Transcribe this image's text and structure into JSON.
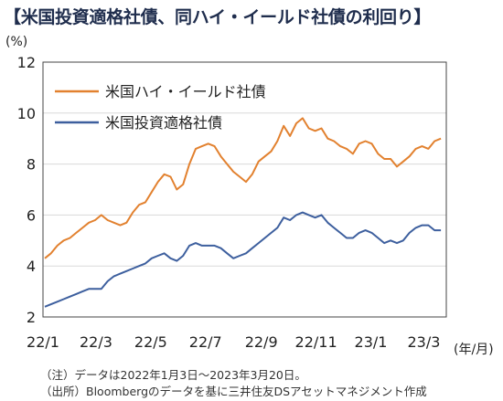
{
  "header": {
    "title": "【米国投資適格社債、同ハイ・イールド社債の利回り】"
  },
  "notes": {
    "note1": "（注）データは2022年1月3日～2023年3月20日。",
    "note2": "（出所）Bloombergのデータを基に三井住友DSアセットマネジメント作成"
  },
  "chart_data": {
    "type": "line",
    "yunit": "(%)",
    "xunit": "(年/月)",
    "ylim": [
      2,
      12
    ],
    "yticks": [
      2,
      4,
      6,
      8,
      10,
      12
    ],
    "xlim": [
      "2022-01-03",
      "2023-03-20"
    ],
    "xticks": [
      {
        "date": "2022-01-01",
        "label": "22/1"
      },
      {
        "date": "2022-03-01",
        "label": "22/3"
      },
      {
        "date": "2022-05-01",
        "label": "22/5"
      },
      {
        "date": "2022-07-01",
        "label": "22/7"
      },
      {
        "date": "2022-09-01",
        "label": "22/9"
      },
      {
        "date": "2022-11-01",
        "label": "22/11"
      },
      {
        "date": "2023-01-01",
        "label": "23/1"
      },
      {
        "date": "2023-03-01",
        "label": "23/3"
      }
    ],
    "grid": true,
    "legend_position": "top-left",
    "series": [
      {
        "name": "米国ハイ・イールド社債",
        "color": "#e2812f",
        "points": [
          [
            "2022-01-03",
            4.3
          ],
          [
            "2022-01-10",
            4.5
          ],
          [
            "2022-01-17",
            4.8
          ],
          [
            "2022-01-24",
            5.0
          ],
          [
            "2022-01-31",
            5.1
          ],
          [
            "2022-02-07",
            5.3
          ],
          [
            "2022-02-14",
            5.5
          ],
          [
            "2022-02-21",
            5.7
          ],
          [
            "2022-02-28",
            5.8
          ],
          [
            "2022-03-07",
            6.0
          ],
          [
            "2022-03-14",
            5.8
          ],
          [
            "2022-03-21",
            5.7
          ],
          [
            "2022-03-28",
            5.6
          ],
          [
            "2022-04-04",
            5.7
          ],
          [
            "2022-04-11",
            6.1
          ],
          [
            "2022-04-18",
            6.4
          ],
          [
            "2022-04-25",
            6.5
          ],
          [
            "2022-05-02",
            6.9
          ],
          [
            "2022-05-09",
            7.3
          ],
          [
            "2022-05-16",
            7.6
          ],
          [
            "2022-05-23",
            7.5
          ],
          [
            "2022-05-30",
            7.0
          ],
          [
            "2022-06-06",
            7.2
          ],
          [
            "2022-06-13",
            8.0
          ],
          [
            "2022-06-20",
            8.6
          ],
          [
            "2022-06-27",
            8.7
          ],
          [
            "2022-07-04",
            8.8
          ],
          [
            "2022-07-11",
            8.7
          ],
          [
            "2022-07-18",
            8.3
          ],
          [
            "2022-07-25",
            8.0
          ],
          [
            "2022-08-01",
            7.7
          ],
          [
            "2022-08-08",
            7.5
          ],
          [
            "2022-08-15",
            7.3
          ],
          [
            "2022-08-22",
            7.6
          ],
          [
            "2022-08-29",
            8.1
          ],
          [
            "2022-09-05",
            8.3
          ],
          [
            "2022-09-12",
            8.5
          ],
          [
            "2022-09-19",
            8.9
          ],
          [
            "2022-09-26",
            9.5
          ],
          [
            "2022-10-03",
            9.1
          ],
          [
            "2022-10-10",
            9.6
          ],
          [
            "2022-10-17",
            9.8
          ],
          [
            "2022-10-24",
            9.4
          ],
          [
            "2022-10-31",
            9.3
          ],
          [
            "2022-11-07",
            9.4
          ],
          [
            "2022-11-14",
            9.0
          ],
          [
            "2022-11-21",
            8.9
          ],
          [
            "2022-11-28",
            8.7
          ],
          [
            "2022-12-05",
            8.6
          ],
          [
            "2022-12-12",
            8.4
          ],
          [
            "2022-12-19",
            8.8
          ],
          [
            "2022-12-26",
            8.9
          ],
          [
            "2023-01-02",
            8.8
          ],
          [
            "2023-01-09",
            8.4
          ],
          [
            "2023-01-16",
            8.2
          ],
          [
            "2023-01-23",
            8.2
          ],
          [
            "2023-01-30",
            7.9
          ],
          [
            "2023-02-06",
            8.1
          ],
          [
            "2023-02-13",
            8.3
          ],
          [
            "2023-02-20",
            8.6
          ],
          [
            "2023-02-27",
            8.7
          ],
          [
            "2023-03-06",
            8.6
          ],
          [
            "2023-03-13",
            8.9
          ],
          [
            "2023-03-20",
            9.0
          ]
        ]
      },
      {
        "name": "米国投資適格社債",
        "color": "#3d5f9e",
        "points": [
          [
            "2022-01-03",
            2.4
          ],
          [
            "2022-01-10",
            2.5
          ],
          [
            "2022-01-17",
            2.6
          ],
          [
            "2022-01-24",
            2.7
          ],
          [
            "2022-01-31",
            2.8
          ],
          [
            "2022-02-07",
            2.9
          ],
          [
            "2022-02-14",
            3.0
          ],
          [
            "2022-02-21",
            3.1
          ],
          [
            "2022-02-28",
            3.1
          ],
          [
            "2022-03-07",
            3.1
          ],
          [
            "2022-03-14",
            3.4
          ],
          [
            "2022-03-21",
            3.6
          ],
          [
            "2022-03-28",
            3.7
          ],
          [
            "2022-04-04",
            3.8
          ],
          [
            "2022-04-11",
            3.9
          ],
          [
            "2022-04-18",
            4.0
          ],
          [
            "2022-04-25",
            4.1
          ],
          [
            "2022-05-02",
            4.3
          ],
          [
            "2022-05-09",
            4.4
          ],
          [
            "2022-05-16",
            4.5
          ],
          [
            "2022-05-23",
            4.3
          ],
          [
            "2022-05-30",
            4.2
          ],
          [
            "2022-06-06",
            4.4
          ],
          [
            "2022-06-13",
            4.8
          ],
          [
            "2022-06-20",
            4.9
          ],
          [
            "2022-06-27",
            4.8
          ],
          [
            "2022-07-04",
            4.8
          ],
          [
            "2022-07-11",
            4.8
          ],
          [
            "2022-07-18",
            4.7
          ],
          [
            "2022-07-25",
            4.5
          ],
          [
            "2022-08-01",
            4.3
          ],
          [
            "2022-08-08",
            4.4
          ],
          [
            "2022-08-15",
            4.5
          ],
          [
            "2022-08-22",
            4.7
          ],
          [
            "2022-08-29",
            4.9
          ],
          [
            "2022-09-05",
            5.1
          ],
          [
            "2022-09-12",
            5.3
          ],
          [
            "2022-09-19",
            5.5
          ],
          [
            "2022-09-26",
            5.9
          ],
          [
            "2022-10-03",
            5.8
          ],
          [
            "2022-10-10",
            6.0
          ],
          [
            "2022-10-17",
            6.1
          ],
          [
            "2022-10-24",
            6.0
          ],
          [
            "2022-10-31",
            5.9
          ],
          [
            "2022-11-07",
            6.0
          ],
          [
            "2022-11-14",
            5.7
          ],
          [
            "2022-11-21",
            5.5
          ],
          [
            "2022-11-28",
            5.3
          ],
          [
            "2022-12-05",
            5.1
          ],
          [
            "2022-12-12",
            5.1
          ],
          [
            "2022-12-19",
            5.3
          ],
          [
            "2022-12-26",
            5.4
          ],
          [
            "2023-01-02",
            5.3
          ],
          [
            "2023-01-09",
            5.1
          ],
          [
            "2023-01-16",
            4.9
          ],
          [
            "2023-01-23",
            5.0
          ],
          [
            "2023-01-30",
            4.9
          ],
          [
            "2023-02-06",
            5.0
          ],
          [
            "2023-02-13",
            5.3
          ],
          [
            "2023-02-20",
            5.5
          ],
          [
            "2023-02-27",
            5.6
          ],
          [
            "2023-03-06",
            5.6
          ],
          [
            "2023-03-13",
            5.4
          ],
          [
            "2023-03-20",
            5.4
          ]
        ]
      }
    ]
  }
}
